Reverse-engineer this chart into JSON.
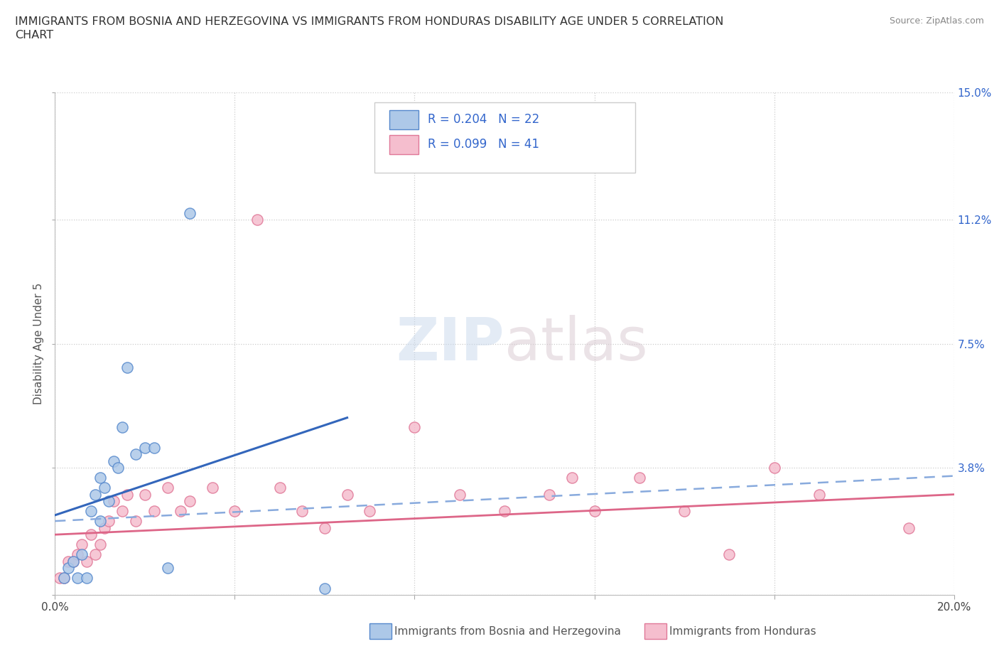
{
  "title_line1": "IMMIGRANTS FROM BOSNIA AND HERZEGOVINA VS IMMIGRANTS FROM HONDURAS DISABILITY AGE UNDER 5 CORRELATION",
  "title_line2": "CHART",
  "source_text": "Source: ZipAtlas.com",
  "ylabel": "Disability Age Under 5",
  "xlim": [
    0.0,
    0.2
  ],
  "ylim": [
    0.0,
    0.15
  ],
  "bosnia_color": "#adc8e8",
  "honduras_color": "#f5bece",
  "bosnia_edge_color": "#5588cc",
  "honduras_edge_color": "#e07898",
  "bosnia_R": 0.204,
  "bosnia_N": 22,
  "honduras_R": 0.099,
  "honduras_N": 41,
  "bosnia_line_color": "#3366bb",
  "honduras_line_color": "#dd6688",
  "bosnia_dashed_color": "#88aadd",
  "watermark_text": "ZIPatlas",
  "background_color": "#ffffff",
  "grid_color": "#cccccc",
  "bosnia_scatter_x": [
    0.002,
    0.003,
    0.004,
    0.005,
    0.006,
    0.007,
    0.008,
    0.009,
    0.01,
    0.01,
    0.011,
    0.012,
    0.013,
    0.014,
    0.015,
    0.016,
    0.018,
    0.02,
    0.022,
    0.025,
    0.03,
    0.06
  ],
  "bosnia_scatter_y": [
    0.005,
    0.008,
    0.01,
    0.005,
    0.012,
    0.005,
    0.025,
    0.03,
    0.022,
    0.035,
    0.032,
    0.028,
    0.04,
    0.038,
    0.05,
    0.068,
    0.042,
    0.044,
    0.044,
    0.008,
    0.114,
    0.002
  ],
  "honduras_scatter_x": [
    0.001,
    0.002,
    0.003,
    0.004,
    0.005,
    0.006,
    0.007,
    0.008,
    0.009,
    0.01,
    0.011,
    0.012,
    0.013,
    0.015,
    0.016,
    0.018,
    0.02,
    0.022,
    0.025,
    0.028,
    0.03,
    0.035,
    0.04,
    0.045,
    0.05,
    0.055,
    0.06,
    0.065,
    0.07,
    0.08,
    0.09,
    0.1,
    0.11,
    0.115,
    0.12,
    0.13,
    0.14,
    0.15,
    0.16,
    0.17,
    0.19
  ],
  "honduras_scatter_y": [
    0.005,
    0.005,
    0.01,
    0.01,
    0.012,
    0.015,
    0.01,
    0.018,
    0.012,
    0.015,
    0.02,
    0.022,
    0.028,
    0.025,
    0.03,
    0.022,
    0.03,
    0.025,
    0.032,
    0.025,
    0.028,
    0.032,
    0.025,
    0.112,
    0.032,
    0.025,
    0.02,
    0.03,
    0.025,
    0.05,
    0.03,
    0.025,
    0.03,
    0.035,
    0.025,
    0.035,
    0.025,
    0.012,
    0.038,
    0.03,
    0.02
  ]
}
